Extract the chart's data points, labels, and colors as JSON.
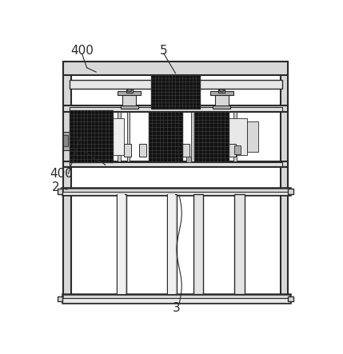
{
  "bg_color": "#ffffff",
  "lc": "#2a2a2a",
  "dark": "#111111",
  "lgray": "#d8d8d8",
  "mgray": "#aaaaaa",
  "dgray": "#666666",
  "figsize": [
    4.29,
    4.43
  ],
  "dpi": 100
}
